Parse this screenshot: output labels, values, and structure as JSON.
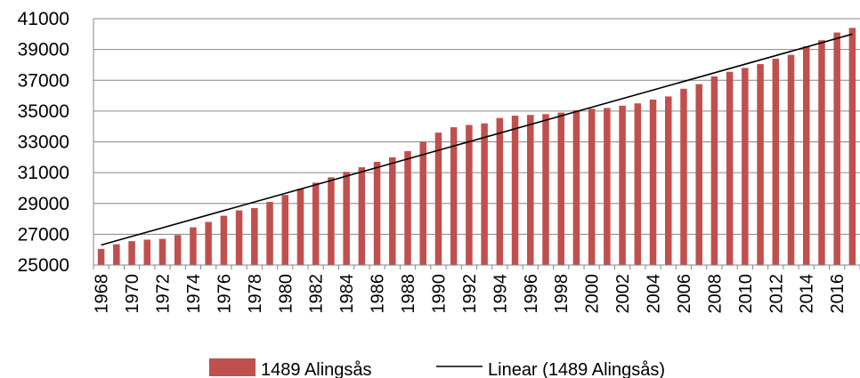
{
  "chart_data": {
    "type": "bar",
    "categories": [
      "1968",
      "1969",
      "1970",
      "1971",
      "1972",
      "1973",
      "1974",
      "1975",
      "1976",
      "1977",
      "1978",
      "1979",
      "1980",
      "1981",
      "1982",
      "1983",
      "1984",
      "1985",
      "1986",
      "1987",
      "1988",
      "1989",
      "1990",
      "1991",
      "1992",
      "1993",
      "1994",
      "1995",
      "1996",
      "1997",
      "1998",
      "1999",
      "2000",
      "2001",
      "2002",
      "2003",
      "2004",
      "2005",
      "2006",
      "2007",
      "2008",
      "2009",
      "2010",
      "2011",
      "2012",
      "2013",
      "2014",
      "2015",
      "2016",
      "2017"
    ],
    "tick_labels": [
      "1968",
      "1970",
      "1972",
      "1974",
      "1976",
      "1978",
      "1980",
      "1982",
      "1984",
      "1986",
      "1988",
      "1990",
      "1992",
      "1994",
      "1996",
      "1998",
      "2000",
      "2002",
      "2004",
      "2006",
      "2008",
      "2010",
      "2012",
      "2014",
      "2016"
    ],
    "series": [
      {
        "name": "1489 Alingsås",
        "color": "#c0504d",
        "values": [
          26050,
          26350,
          26550,
          26650,
          26700,
          26950,
          27450,
          27800,
          28200,
          28550,
          28700,
          29100,
          29550,
          29950,
          30350,
          30700,
          31050,
          31350,
          31700,
          32000,
          32400,
          33000,
          33600,
          33950,
          34100,
          34200,
          34550,
          34700,
          34750,
          34800,
          34900,
          35050,
          35150,
          35200,
          35350,
          35500,
          35750,
          35950,
          36450,
          36750,
          37250,
          37550,
          37800,
          38050,
          38400,
          38650,
          39200,
          39600,
          40100,
          40400
        ]
      }
    ],
    "trendline": {
      "name": "Linear (1489 Alingsås)",
      "type": "linear",
      "color": "#000000",
      "start_value": 26300,
      "end_value": 40000
    },
    "ylim": [
      25000,
      41000
    ],
    "yticks": [
      25000,
      27000,
      29000,
      31000,
      33000,
      35000,
      37000,
      39000,
      41000
    ],
    "grid": true,
    "legend_position": "bottom-center"
  }
}
